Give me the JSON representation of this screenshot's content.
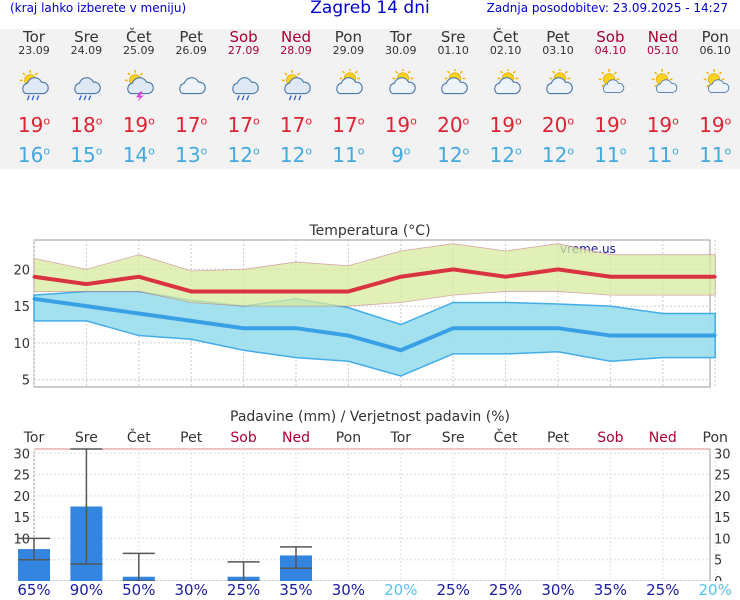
{
  "header": {
    "location_hint": "(kraj lahko izberete v meniju)",
    "title": "Zagreb 14 dni",
    "updated": "Zadnja posodobitev: 23.09.2025 - 14:27"
  },
  "days": [
    {
      "name": "Tor",
      "date": "23.09",
      "weekend": false,
      "icon": "rain-sun-icon",
      "max": "19",
      "min": "16"
    },
    {
      "name": "Sre",
      "date": "24.09",
      "weekend": false,
      "icon": "rain-cloud-icon",
      "max": "18",
      "min": "15"
    },
    {
      "name": "Čet",
      "date": "25.09",
      "weekend": false,
      "icon": "thunderstorm-icon",
      "max": "19",
      "min": "14"
    },
    {
      "name": "Pet",
      "date": "26.09",
      "weekend": false,
      "icon": "cloud-icon",
      "max": "17",
      "min": "13"
    },
    {
      "name": "Sob",
      "date": "27.09",
      "weekend": true,
      "icon": "rain-cloud-icon",
      "max": "17",
      "min": "12"
    },
    {
      "name": "Ned",
      "date": "28.09",
      "weekend": true,
      "icon": "rain-sun-icon",
      "max": "17",
      "min": "12"
    },
    {
      "name": "Pon",
      "date": "29.09",
      "weekend": false,
      "icon": "partly-cloudy-icon",
      "max": "17",
      "min": "11"
    },
    {
      "name": "Tor",
      "date": "30.09",
      "weekend": false,
      "icon": "partly-cloudy-icon",
      "max": "19",
      "min": "9"
    },
    {
      "name": "Sre",
      "date": "01.10",
      "weekend": false,
      "icon": "partly-cloudy-icon",
      "max": "20",
      "min": "12"
    },
    {
      "name": "Čet",
      "date": "02.10",
      "weekend": false,
      "icon": "partly-cloudy-icon",
      "max": "19",
      "min": "12"
    },
    {
      "name": "Pet",
      "date": "03.10",
      "weekend": false,
      "icon": "partly-cloudy-icon",
      "max": "20",
      "min": "12"
    },
    {
      "name": "Sob",
      "date": "04.10",
      "weekend": true,
      "icon": "sun-cloud-icon",
      "max": "19",
      "min": "11"
    },
    {
      "name": "Ned",
      "date": "05.10",
      "weekend": true,
      "icon": "sun-cloud-icon",
      "max": "19",
      "min": "11"
    },
    {
      "name": "Pon",
      "date": "06.10",
      "weekend": false,
      "icon": "sun-cloud-icon",
      "max": "19",
      "min": "11"
    }
  ],
  "colors": {
    "max": "#dd2233",
    "min": "#44a9dd",
    "weekend": "#aa0033",
    "band_max": "#d7ec9e",
    "band_min": "#9fe0ef",
    "precip_bar": "#3385e0"
  },
  "chart_data": [
    {
      "type": "line",
      "title": "Temperatura (°C)",
      "watermark": "vreme.us",
      "categories": [
        "Tor",
        "Sre",
        "Čet",
        "Pet",
        "Sob",
        "Ned",
        "Pon",
        "Tor",
        "Sre",
        "Čet",
        "Pet",
        "Sob",
        "Ned",
        "Pon"
      ],
      "ylim": [
        4,
        24
      ],
      "yticks": [
        5,
        10,
        15,
        20
      ],
      "series": [
        {
          "name": "max",
          "values": [
            19,
            18,
            19,
            17,
            17,
            17,
            17,
            19,
            20,
            19,
            20,
            19,
            19,
            19
          ],
          "band_low": [
            17,
            17,
            17,
            15.5,
            15,
            15,
            15,
            15.5,
            16.5,
            17,
            17,
            16.5,
            16.5,
            16.5
          ],
          "band_high": [
            21.5,
            20,
            22,
            19.8,
            20,
            21,
            20.5,
            22.5,
            23.5,
            22.5,
            23.5,
            22,
            22,
            22
          ]
        },
        {
          "name": "min",
          "values": [
            16,
            15,
            14,
            13,
            12,
            12,
            11,
            9,
            12,
            12,
            12,
            11,
            11,
            11
          ],
          "band_low": [
            13,
            13,
            11,
            10.5,
            9,
            8,
            7.5,
            5.5,
            8.5,
            8.5,
            8.8,
            7.5,
            8,
            8
          ],
          "band_high": [
            16.5,
            17,
            17,
            15.8,
            15,
            16,
            14.8,
            12.5,
            15.5,
            15.5,
            15.3,
            15,
            14,
            14
          ]
        }
      ],
      "grid": true
    },
    {
      "type": "bar",
      "title": "Padavine (mm) / Verjetnost padavin (%)",
      "categories": [
        "Tor",
        "Sre",
        "Čet",
        "Pet",
        "Sob",
        "Ned",
        "Pon",
        "Tor",
        "Sre",
        "Čet",
        "Pet",
        "Sob",
        "Ned",
        "Pon"
      ],
      "ylim": [
        0,
        31
      ],
      "yticks": [
        0,
        5,
        10,
        15,
        20,
        25,
        30
      ],
      "values": [
        7.5,
        17.5,
        1,
        0,
        1,
        6,
        0,
        0,
        0,
        0,
        0,
        0,
        0,
        0
      ],
      "err_low": [
        5,
        4,
        0,
        0,
        0,
        3,
        0,
        0,
        0,
        0,
        0,
        0,
        0,
        0
      ],
      "err_high": [
        10,
        31,
        6.5,
        0,
        4.5,
        8,
        0,
        0,
        0,
        0,
        0,
        0,
        0,
        0
      ],
      "probability": [
        "65%",
        "90%",
        "50%",
        "30%",
        "25%",
        "35%",
        "30%",
        "20%",
        "25%",
        "25%",
        "30%",
        "35%",
        "25%",
        "20%"
      ],
      "probability_values": [
        65,
        90,
        50,
        30,
        25,
        35,
        30,
        20,
        25,
        25,
        30,
        35,
        25,
        20
      ],
      "grid": true
    }
  ]
}
